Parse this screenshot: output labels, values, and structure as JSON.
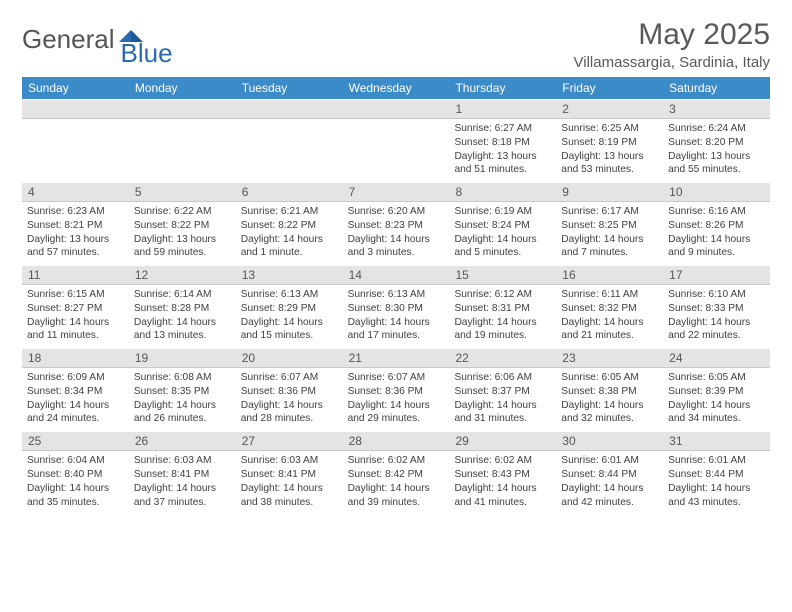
{
  "logo": {
    "word1": "General",
    "word2": "Blue",
    "icon_color": "#2a6bb0"
  },
  "title": "May 2025",
  "location": "Villamassargia, Sardinia, Italy",
  "colors": {
    "header_bg": "#3b8bc9",
    "header_text": "#ffffff",
    "daynum_bg": "#e4e4e4",
    "text": "#404040",
    "title_text": "#595959"
  },
  "typography": {
    "title_fontsize": 30,
    "location_fontsize": 15,
    "weekday_fontsize": 12,
    "daynum_fontsize": 12,
    "body_fontsize": 10.2
  },
  "calendar": {
    "type": "calendar-grid",
    "columns": 7,
    "rows": 5,
    "weekdays": [
      "Sunday",
      "Monday",
      "Tuesday",
      "Wednesday",
      "Thursday",
      "Friday",
      "Saturday"
    ],
    "weeks": [
      [
        null,
        null,
        null,
        null,
        {
          "n": "1",
          "sunrise": "6:27 AM",
          "sunset": "8:18 PM",
          "dl1": "Daylight: 13 hours",
          "dl2": "and 51 minutes."
        },
        {
          "n": "2",
          "sunrise": "6:25 AM",
          "sunset": "8:19 PM",
          "dl1": "Daylight: 13 hours",
          "dl2": "and 53 minutes."
        },
        {
          "n": "3",
          "sunrise": "6:24 AM",
          "sunset": "8:20 PM",
          "dl1": "Daylight: 13 hours",
          "dl2": "and 55 minutes."
        }
      ],
      [
        {
          "n": "4",
          "sunrise": "6:23 AM",
          "sunset": "8:21 PM",
          "dl1": "Daylight: 13 hours",
          "dl2": "and 57 minutes."
        },
        {
          "n": "5",
          "sunrise": "6:22 AM",
          "sunset": "8:22 PM",
          "dl1": "Daylight: 13 hours",
          "dl2": "and 59 minutes."
        },
        {
          "n": "6",
          "sunrise": "6:21 AM",
          "sunset": "8:22 PM",
          "dl1": "Daylight: 14 hours",
          "dl2": "and 1 minute."
        },
        {
          "n": "7",
          "sunrise": "6:20 AM",
          "sunset": "8:23 PM",
          "dl1": "Daylight: 14 hours",
          "dl2": "and 3 minutes."
        },
        {
          "n": "8",
          "sunrise": "6:19 AM",
          "sunset": "8:24 PM",
          "dl1": "Daylight: 14 hours",
          "dl2": "and 5 minutes."
        },
        {
          "n": "9",
          "sunrise": "6:17 AM",
          "sunset": "8:25 PM",
          "dl1": "Daylight: 14 hours",
          "dl2": "and 7 minutes."
        },
        {
          "n": "10",
          "sunrise": "6:16 AM",
          "sunset": "8:26 PM",
          "dl1": "Daylight: 14 hours",
          "dl2": "and 9 minutes."
        }
      ],
      [
        {
          "n": "11",
          "sunrise": "6:15 AM",
          "sunset": "8:27 PM",
          "dl1": "Daylight: 14 hours",
          "dl2": "and 11 minutes."
        },
        {
          "n": "12",
          "sunrise": "6:14 AM",
          "sunset": "8:28 PM",
          "dl1": "Daylight: 14 hours",
          "dl2": "and 13 minutes."
        },
        {
          "n": "13",
          "sunrise": "6:13 AM",
          "sunset": "8:29 PM",
          "dl1": "Daylight: 14 hours",
          "dl2": "and 15 minutes."
        },
        {
          "n": "14",
          "sunrise": "6:13 AM",
          "sunset": "8:30 PM",
          "dl1": "Daylight: 14 hours",
          "dl2": "and 17 minutes."
        },
        {
          "n": "15",
          "sunrise": "6:12 AM",
          "sunset": "8:31 PM",
          "dl1": "Daylight: 14 hours",
          "dl2": "and 19 minutes."
        },
        {
          "n": "16",
          "sunrise": "6:11 AM",
          "sunset": "8:32 PM",
          "dl1": "Daylight: 14 hours",
          "dl2": "and 21 minutes."
        },
        {
          "n": "17",
          "sunrise": "6:10 AM",
          "sunset": "8:33 PM",
          "dl1": "Daylight: 14 hours",
          "dl2": "and 22 minutes."
        }
      ],
      [
        {
          "n": "18",
          "sunrise": "6:09 AM",
          "sunset": "8:34 PM",
          "dl1": "Daylight: 14 hours",
          "dl2": "and 24 minutes."
        },
        {
          "n": "19",
          "sunrise": "6:08 AM",
          "sunset": "8:35 PM",
          "dl1": "Daylight: 14 hours",
          "dl2": "and 26 minutes."
        },
        {
          "n": "20",
          "sunrise": "6:07 AM",
          "sunset": "8:36 PM",
          "dl1": "Daylight: 14 hours",
          "dl2": "and 28 minutes."
        },
        {
          "n": "21",
          "sunrise": "6:07 AM",
          "sunset": "8:36 PM",
          "dl1": "Daylight: 14 hours",
          "dl2": "and 29 minutes."
        },
        {
          "n": "22",
          "sunrise": "6:06 AM",
          "sunset": "8:37 PM",
          "dl1": "Daylight: 14 hours",
          "dl2": "and 31 minutes."
        },
        {
          "n": "23",
          "sunrise": "6:05 AM",
          "sunset": "8:38 PM",
          "dl1": "Daylight: 14 hours",
          "dl2": "and 32 minutes."
        },
        {
          "n": "24",
          "sunrise": "6:05 AM",
          "sunset": "8:39 PM",
          "dl1": "Daylight: 14 hours",
          "dl2": "and 34 minutes."
        }
      ],
      [
        {
          "n": "25",
          "sunrise": "6:04 AM",
          "sunset": "8:40 PM",
          "dl1": "Daylight: 14 hours",
          "dl2": "and 35 minutes."
        },
        {
          "n": "26",
          "sunrise": "6:03 AM",
          "sunset": "8:41 PM",
          "dl1": "Daylight: 14 hours",
          "dl2": "and 37 minutes."
        },
        {
          "n": "27",
          "sunrise": "6:03 AM",
          "sunset": "8:41 PM",
          "dl1": "Daylight: 14 hours",
          "dl2": "and 38 minutes."
        },
        {
          "n": "28",
          "sunrise": "6:02 AM",
          "sunset": "8:42 PM",
          "dl1": "Daylight: 14 hours",
          "dl2": "and 39 minutes."
        },
        {
          "n": "29",
          "sunrise": "6:02 AM",
          "sunset": "8:43 PM",
          "dl1": "Daylight: 14 hours",
          "dl2": "and 41 minutes."
        },
        {
          "n": "30",
          "sunrise": "6:01 AM",
          "sunset": "8:44 PM",
          "dl1": "Daylight: 14 hours",
          "dl2": "and 42 minutes."
        },
        {
          "n": "31",
          "sunrise": "6:01 AM",
          "sunset": "8:44 PM",
          "dl1": "Daylight: 14 hours",
          "dl2": "and 43 minutes."
        }
      ]
    ],
    "labels": {
      "sunrise_prefix": "Sunrise: ",
      "sunset_prefix": "Sunset: "
    }
  }
}
